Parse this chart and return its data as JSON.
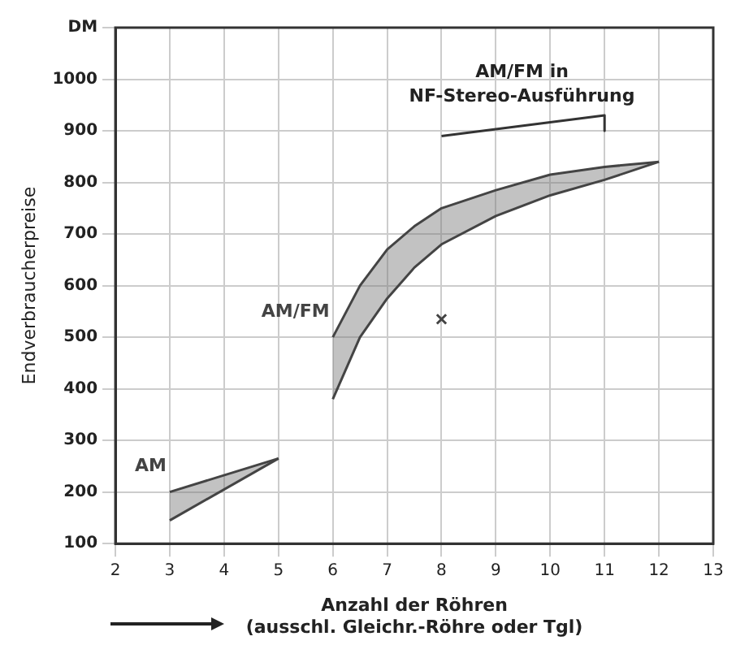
{
  "chart_data": {
    "type": "line",
    "xlabel": "Anzahl der Röhren\n(ausschl. Gleichr.-Röhre oder Tgl)",
    "ylabel": "Endverbraucherpreise",
    "xlim": [
      2,
      13
    ],
    "xticks": [
      2,
      3,
      4,
      5,
      6,
      7,
      8,
      9,
      10,
      11,
      12,
      13
    ],
    "ylim": [
      100,
      1100
    ],
    "yticks": [
      100,
      200,
      300,
      400,
      500,
      600,
      700,
      800,
      900,
      1000,
      {
        "value": 1100,
        "label": "DM"
      }
    ],
    "grid": true,
    "legend": false,
    "series": [
      {
        "name": "AM",
        "color": "#444444",
        "x": [
          3,
          5
        ],
        "values": [
          200,
          265
        ],
        "lower": [
          145,
          265
        ],
        "upper": [
          200,
          265
        ]
      },
      {
        "color": "#444444",
        "x": [
          3,
          5
        ],
        "values": [
          145,
          265
        ]
      },
      {
        "name": "AM/FM",
        "color": "#444444",
        "x": [
          6,
          6.5,
          7,
          7.5,
          8,
          9,
          10,
          11,
          12
        ],
        "values": [
          500,
          600,
          670,
          715,
          750,
          785,
          815,
          830,
          840
        ],
        "lower": [
          380,
          500,
          575,
          635,
          680,
          735,
          775,
          805,
          840
        ],
        "upper": [
          500,
          600,
          670,
          715,
          750,
          785,
          815,
          830,
          840
        ]
      },
      {
        "color": "#444444",
        "x": [
          6,
          6.5,
          7,
          7.5,
          8,
          9,
          10,
          11,
          12
        ],
        "values": [
          380,
          500,
          575,
          635,
          680,
          735,
          775,
          805,
          840
        ]
      },
      {
        "type": "scatter",
        "color": "#444444",
        "marker": "cross",
        "x": [
          8
        ],
        "values": [
          535
        ]
      },
      {
        "color": "#333333",
        "x": [
          8,
          11,
          11
        ],
        "values": [
          890,
          930,
          900
        ]
      }
    ],
    "annotations": [
      "AM/FM in NF-Stereo-Ausführung"
    ]
  }
}
